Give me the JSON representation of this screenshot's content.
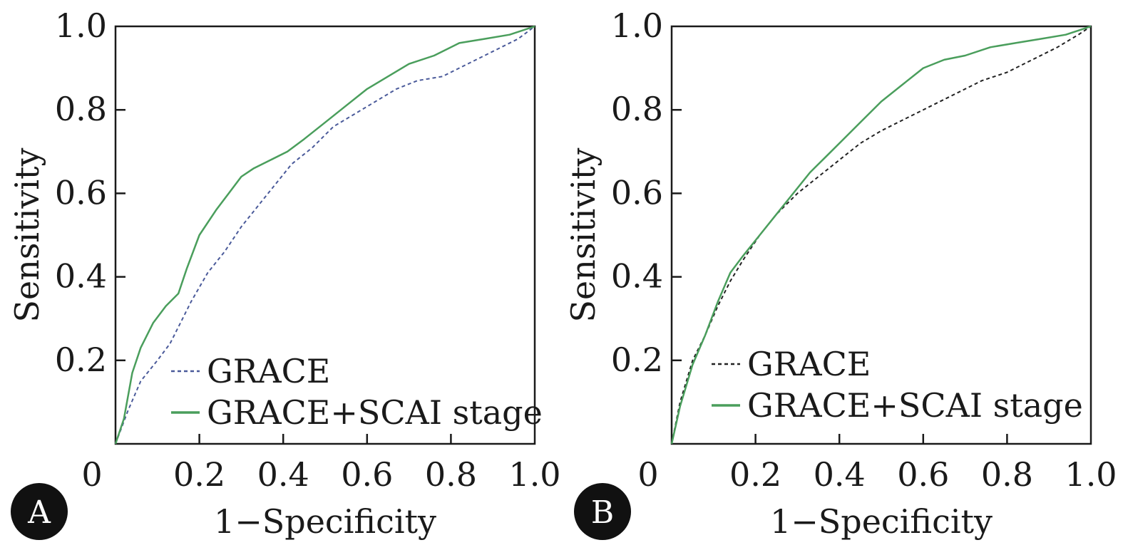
{
  "colors": {
    "grace_a": "#4a5a9a",
    "grace_b": "#222222",
    "grace_scai": "#4a9e5c",
    "badge": "#111111"
  },
  "panels": [
    {
      "badge": "A"
    },
    {
      "badge": "B"
    }
  ],
  "chart_data": [
    {
      "type": "line",
      "panel": "A",
      "xlabel": "1−Specificity",
      "ylabel": "Sensitivity",
      "xlim": [
        0,
        1
      ],
      "ylim": [
        0,
        1
      ],
      "x_ticks": [
        "0",
        "0.2",
        "0.4",
        "0.6",
        "0.8",
        "1.0"
      ],
      "y_ticks": [
        "0.2",
        "0.4",
        "0.6",
        "0.8",
        "1.0"
      ],
      "legend": "bottom-right",
      "series": [
        {
          "name": "GRACE",
          "style": "dashed",
          "x": [
            0,
            0.03,
            0.06,
            0.1,
            0.13,
            0.16,
            0.18,
            0.22,
            0.26,
            0.3,
            0.34,
            0.38,
            0.42,
            0.47,
            0.52,
            0.57,
            0.62,
            0.67,
            0.72,
            0.78,
            0.84,
            0.9,
            0.96,
            1.0
          ],
          "y": [
            0,
            0.08,
            0.15,
            0.2,
            0.24,
            0.3,
            0.34,
            0.41,
            0.46,
            0.52,
            0.57,
            0.62,
            0.67,
            0.71,
            0.76,
            0.79,
            0.82,
            0.85,
            0.87,
            0.88,
            0.91,
            0.94,
            0.97,
            1.0
          ]
        },
        {
          "name": "GRACE+SCAI stage",
          "style": "solid",
          "x": [
            0,
            0.02,
            0.04,
            0.06,
            0.09,
            0.12,
            0.15,
            0.17,
            0.2,
            0.24,
            0.27,
            0.3,
            0.33,
            0.37,
            0.41,
            0.45,
            0.5,
            0.55,
            0.6,
            0.65,
            0.7,
            0.76,
            0.82,
            0.88,
            0.94,
            1.0
          ],
          "y": [
            0,
            0.06,
            0.17,
            0.23,
            0.29,
            0.33,
            0.36,
            0.42,
            0.5,
            0.56,
            0.6,
            0.64,
            0.66,
            0.68,
            0.7,
            0.73,
            0.77,
            0.81,
            0.85,
            0.88,
            0.91,
            0.93,
            0.96,
            0.97,
            0.98,
            1.0
          ]
        }
      ]
    },
    {
      "type": "line",
      "panel": "B",
      "xlabel": "1−Specificity",
      "ylabel": "Sensitivity",
      "xlim": [
        0,
        1
      ],
      "ylim": [
        0,
        1
      ],
      "x_ticks": [
        "0",
        "0.2",
        "0.4",
        "0.6",
        "0.8",
        "1.0"
      ],
      "y_ticks": [
        "0.2",
        "0.4",
        "0.6",
        "0.8",
        "1.0"
      ],
      "legend": "bottom-right",
      "series": [
        {
          "name": "GRACE",
          "style": "dashed",
          "x": [
            0,
            0.02,
            0.05,
            0.08,
            0.11,
            0.14,
            0.17,
            0.21,
            0.25,
            0.3,
            0.35,
            0.4,
            0.45,
            0.5,
            0.56,
            0.62,
            0.68,
            0.74,
            0.8,
            0.86,
            0.92,
            0.97,
            1.0
          ],
          "y": [
            0,
            0.1,
            0.2,
            0.26,
            0.33,
            0.39,
            0.44,
            0.5,
            0.55,
            0.6,
            0.64,
            0.68,
            0.72,
            0.75,
            0.78,
            0.81,
            0.84,
            0.87,
            0.89,
            0.92,
            0.95,
            0.98,
            1.0
          ]
        },
        {
          "name": "GRACE+SCAI stage",
          "style": "solid",
          "x": [
            0,
            0.02,
            0.05,
            0.08,
            0.11,
            0.14,
            0.17,
            0.21,
            0.25,
            0.29,
            0.33,
            0.37,
            0.41,
            0.45,
            0.5,
            0.55,
            0.6,
            0.65,
            0.7,
            0.76,
            0.82,
            0.88,
            0.94,
            1.0
          ],
          "y": [
            0,
            0.09,
            0.19,
            0.26,
            0.34,
            0.41,
            0.45,
            0.5,
            0.55,
            0.6,
            0.65,
            0.69,
            0.73,
            0.77,
            0.82,
            0.86,
            0.9,
            0.92,
            0.93,
            0.95,
            0.96,
            0.97,
            0.98,
            1.0
          ]
        }
      ]
    }
  ]
}
